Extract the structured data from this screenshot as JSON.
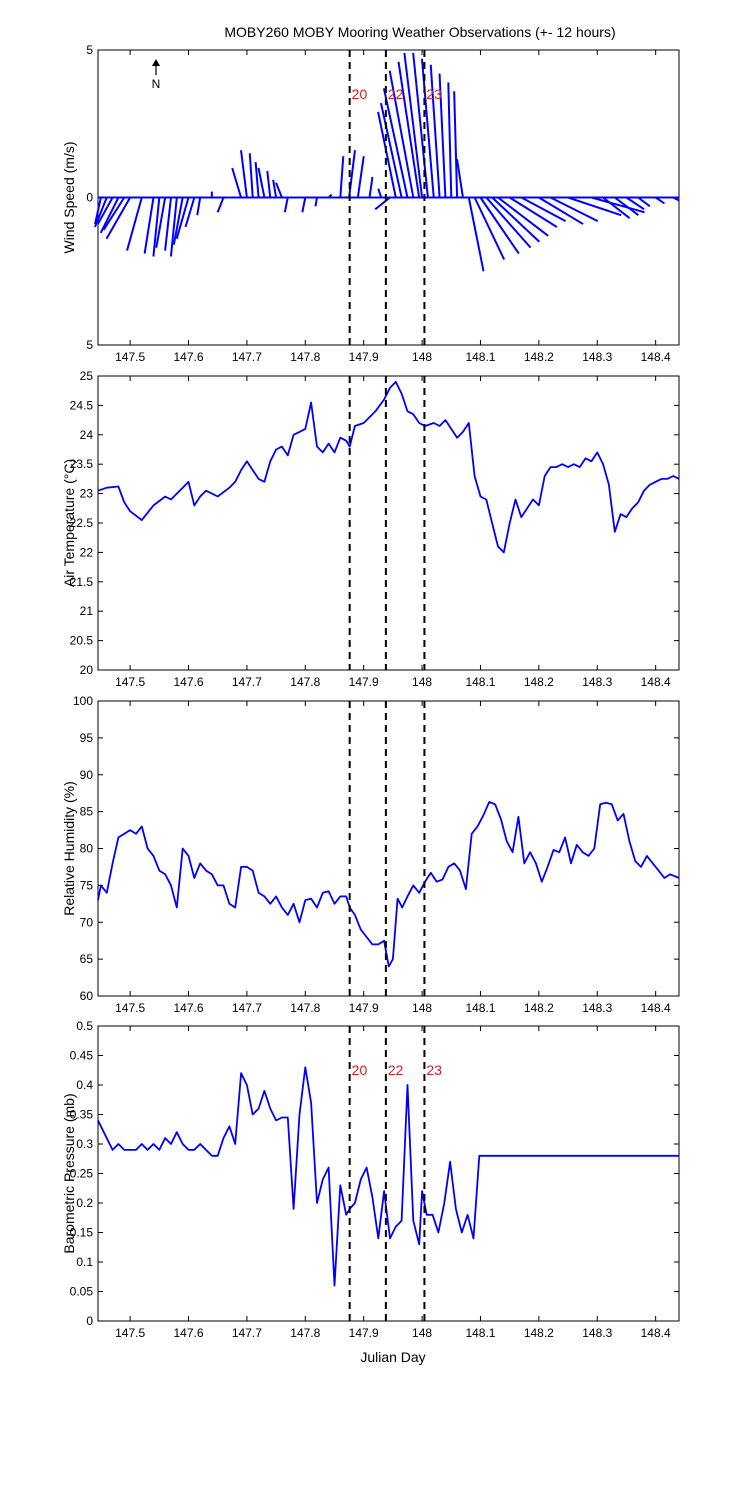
{
  "figure": {
    "title": "MOBY260 MOBY Mooring Weather Observations (+- 12 hours)",
    "xlabel": "Julian Day",
    "north_label": "N",
    "xlim": [
      147.445,
      148.44
    ],
    "xticks": [
      147.5,
      147.6,
      147.7,
      147.8,
      147.9,
      148,
      148.1,
      148.2,
      148.3,
      148.4
    ],
    "xtick_labels": [
      "147.5",
      "147.6",
      "147.7",
      "147.8",
      "147.9",
      "148",
      "148.1",
      "148.2",
      "148.3",
      "148.4"
    ],
    "event_lines": [
      147.876,
      147.938,
      148.004
    ],
    "event_labels": [
      "20",
      "22",
      "23"
    ],
    "colors": {
      "series": "#0000ff",
      "event_label": "#cc2222",
      "axis": "#000000"
    }
  },
  "chart_data": [
    {
      "type": "line",
      "subtype": "wind-vectors",
      "ylabel": "Wind Speed (m/s)",
      "ylim": [
        -5,
        5
      ],
      "yticks": [
        -5,
        0,
        5
      ],
      "ytick_labels": [
        "5",
        "0",
        "5"
      ],
      "series": [
        {
          "x": [
            147.45,
            147.46,
            147.47,
            147.48,
            147.49,
            147.5,
            147.52,
            147.54,
            147.55,
            147.56,
            147.57,
            147.58,
            147.59,
            147.6,
            147.61,
            147.62,
            147.64,
            147.66,
            147.69,
            147.7,
            147.71,
            147.72,
            147.73,
            147.74,
            147.75,
            147.76,
            147.77,
            147.8,
            147.82,
            147.84,
            147.86,
            147.875,
            147.89,
            147.91,
            147.93,
            147.945,
            147.955,
            147.965,
            147.975,
            147.985,
            147.995,
            148.0,
            148.01,
            148.02,
            148.03,
            148.04,
            148.05,
            148.06,
            148.07,
            148.08,
            148.09,
            148.1,
            148.11,
            148.12,
            148.13,
            148.15,
            148.17,
            148.2,
            148.22,
            148.25,
            148.29,
            148.31,
            148.33,
            148.35,
            148.37,
            148.4,
            148.43
          ],
          "u": [
            -0.2,
            -0.4,
            -0.5,
            -0.6,
            -0.7,
            -0.8,
            -0.5,
            -0.3,
            -0.2,
            -0.3,
            -0.2,
            -0.2,
            -0.3,
            -0.4,
            -0.3,
            -0.1,
            0.0,
            -0.2,
            -0.3,
            -0.2,
            -0.1,
            -0.1,
            -0.2,
            -0.1,
            -0.1,
            -0.2,
            -0.1,
            -0.1,
            -0.05,
            0.1,
            0.1,
            0.2,
            0.2,
            0.1,
            -0.1,
            -0.5,
            -0.6,
            -0.7,
            -0.8,
            -0.8,
            -0.7,
            -0.6,
            -0.5,
            -0.4,
            -0.3,
            -0.2,
            -0.1,
            -0.1,
            -0.2,
            0.5,
            1.0,
            1.3,
            1.5,
            1.6,
            1.7,
            1.6,
            1.5,
            1.5,
            1.6,
            1.8,
            1.8,
            0.9,
            0.8,
            0.6,
            0.4,
            0.3,
            0.2
          ],
          "v": [
            -0.9,
            -1.0,
            -0.9,
            -1.2,
            -1.1,
            -1.4,
            -1.8,
            -1.9,
            -2.0,
            -1.7,
            -1.8,
            -2.0,
            -1.6,
            -1.4,
            -1.0,
            -0.6,
            0.2,
            -0.5,
            1.0,
            1.6,
            1.5,
            1.2,
            1.0,
            0.9,
            0.6,
            0.5,
            -0.5,
            -0.5,
            -0.3,
            0.1,
            1.4,
            1.6,
            1.4,
            0.7,
            0.3,
            -0.4,
            2.9,
            3.2,
            3.7,
            4.3,
            4.6,
            4.9,
            4.9,
            4.7,
            4.5,
            4.2,
            3.9,
            3.6,
            1.3,
            -2.5,
            -2.1,
            -1.9,
            -1.7,
            -1.5,
            -1.3,
            -1.0,
            -0.8,
            -0.9,
            -0.8,
            -0.6,
            -0.5,
            -0.7,
            -0.6,
            -0.4,
            -0.3,
            -0.2,
            -0.1
          ]
        }
      ]
    },
    {
      "type": "line",
      "ylabel": "Air Temperature (°C)",
      "ylim": [
        20,
        25
      ],
      "yticks": [
        20,
        20.5,
        21,
        21.5,
        22,
        22.5,
        23,
        23.5,
        24,
        24.5,
        25
      ],
      "ytick_labels": [
        "20",
        "20.5",
        "21",
        "21.5",
        "22",
        "22.5",
        "23",
        "23.5",
        "24",
        "24.5",
        "25"
      ],
      "series": [
        {
          "x": [
            147.445,
            147.46,
            147.48,
            147.49,
            147.5,
            147.52,
            147.54,
            147.56,
            147.57,
            147.58,
            147.59,
            147.6,
            147.61,
            147.62,
            147.63,
            147.64,
            147.65,
            147.67,
            147.68,
            147.69,
            147.7,
            147.71,
            147.72,
            147.73,
            147.74,
            147.75,
            147.76,
            147.77,
            147.78,
            147.79,
            147.8,
            147.81,
            147.82,
            147.83,
            147.84,
            147.85,
            147.86,
            147.87,
            147.876,
            147.885,
            147.9,
            147.91,
            147.92,
            147.935,
            147.945,
            147.955,
            147.965,
            147.975,
            147.985,
            147.995,
            148.005,
            148.02,
            148.03,
            148.04,
            148.05,
            148.06,
            148.07,
            148.08,
            148.09,
            148.1,
            148.11,
            148.12,
            148.13,
            148.14,
            148.15,
            148.16,
            148.17,
            148.18,
            148.19,
            148.2,
            148.21,
            148.22,
            148.23,
            148.24,
            148.25,
            148.26,
            148.27,
            148.28,
            148.29,
            148.3,
            148.31,
            148.32,
            148.33,
            148.34,
            148.35,
            148.36,
            148.37,
            148.38,
            148.39,
            148.4,
            148.41,
            148.42,
            148.43,
            148.44
          ],
          "y": [
            23.05,
            23.1,
            23.12,
            22.85,
            22.7,
            22.55,
            22.8,
            22.95,
            22.9,
            23.0,
            23.1,
            23.2,
            22.8,
            22.95,
            23.05,
            23.0,
            22.95,
            23.1,
            23.2,
            23.4,
            23.55,
            23.4,
            23.25,
            23.2,
            23.55,
            23.75,
            23.8,
            23.65,
            24.0,
            24.05,
            24.1,
            24.55,
            23.8,
            23.7,
            23.85,
            23.7,
            23.95,
            23.9,
            23.8,
            24.15,
            24.2,
            24.3,
            24.4,
            24.6,
            24.8,
            24.9,
            24.7,
            24.4,
            24.35,
            24.2,
            24.15,
            24.2,
            24.15,
            24.25,
            24.1,
            23.95,
            24.05,
            24.2,
            23.3,
            22.95,
            22.9,
            22.5,
            22.1,
            22.0,
            22.5,
            22.9,
            22.6,
            22.75,
            22.9,
            22.8,
            23.3,
            23.45,
            23.45,
            23.5,
            23.45,
            23.5,
            23.45,
            23.6,
            23.55,
            23.7,
            23.5,
            23.15,
            22.35,
            22.65,
            22.6,
            22.75,
            22.85,
            23.05,
            23.15,
            23.2,
            23.25,
            23.25,
            23.3,
            23.25
          ]
        }
      ]
    },
    {
      "type": "line",
      "ylabel": "Relative Humidity (%)",
      "ylim": [
        60,
        100
      ],
      "yticks": [
        60,
        65,
        70,
        75,
        80,
        85,
        90,
        95,
        100
      ],
      "ytick_labels": [
        "60",
        "65",
        "70",
        "75",
        "80",
        "85",
        "90",
        "95",
        "100"
      ],
      "series": [
        {
          "x": [
            147.445,
            147.45,
            147.46,
            147.47,
            147.48,
            147.49,
            147.5,
            147.51,
            147.52,
            147.53,
            147.54,
            147.55,
            147.56,
            147.57,
            147.58,
            147.59,
            147.6,
            147.61,
            147.62,
            147.63,
            147.64,
            147.65,
            147.66,
            147.67,
            147.68,
            147.69,
            147.7,
            147.71,
            147.72,
            147.73,
            147.74,
            147.75,
            147.76,
            147.77,
            147.78,
            147.79,
            147.8,
            147.81,
            147.82,
            147.83,
            147.84,
            147.85,
            147.86,
            147.87,
            147.876,
            147.885,
            147.895,
            147.905,
            147.915,
            147.925,
            147.935,
            147.943,
            147.95,
            147.958,
            147.966,
            147.975,
            147.985,
            147.995,
            148.005,
            148.015,
            148.025,
            148.035,
            148.045,
            148.055,
            148.065,
            148.075,
            148.085,
            148.095,
            148.105,
            148.115,
            148.125,
            148.135,
            148.145,
            148.155,
            148.165,
            148.175,
            148.185,
            148.195,
            148.205,
            148.215,
            148.225,
            148.235,
            148.245,
            148.255,
            148.265,
            148.275,
            148.285,
            148.295,
            148.305,
            148.315,
            148.325,
            148.335,
            148.345,
            148.355,
            148.365,
            148.375,
            148.385,
            148.395,
            148.405,
            148.415,
            148.425,
            148.44
          ],
          "y": [
            73,
            75,
            74,
            78,
            81.5,
            82,
            82.5,
            82,
            83,
            80,
            79,
            77,
            76.5,
            75,
            72,
            80,
            79,
            76,
            78,
            77,
            76.5,
            75,
            75,
            72.5,
            72,
            77.5,
            77.5,
            77,
            74,
            73.5,
            72.5,
            73.5,
            72,
            71,
            72.5,
            70,
            73,
            73.2,
            72,
            74,
            74.2,
            72.5,
            73.5,
            73.5,
            72,
            71,
            69,
            68,
            67,
            67,
            67.5,
            64,
            65,
            73.2,
            72,
            73.5,
            75,
            74,
            75.5,
            76.7,
            75.5,
            75.8,
            77.5,
            78,
            77,
            74.5,
            82,
            83,
            84.5,
            86.3,
            86,
            84,
            81,
            79.5,
            84.3,
            78,
            79.5,
            78,
            75.5,
            77.5,
            79.8,
            79.5,
            81.5,
            78,
            80.5,
            79.5,
            79,
            80,
            86,
            86.2,
            86,
            83.8,
            84.7,
            81,
            78.3,
            77.5,
            79,
            78,
            77,
            76,
            76.5,
            76
          ]
        }
      ]
    },
    {
      "type": "line",
      "ylabel": "Barometric Pressure (mb)",
      "ylim": [
        0,
        0.5
      ],
      "yticks": [
        0,
        0.05,
        0.1,
        0.15,
        0.2,
        0.25,
        0.3,
        0.35,
        0.4,
        0.45,
        0.5
      ],
      "ytick_labels": [
        "0",
        "0.05",
        "0.1",
        "0.15",
        "0.2",
        "0.25",
        "0.3",
        "0.35",
        "0.4",
        "0.45",
        "0.5"
      ],
      "series": [
        {
          "x": [
            147.445,
            147.455,
            147.47,
            147.48,
            147.49,
            147.5,
            147.51,
            147.52,
            147.53,
            147.54,
            147.55,
            147.56,
            147.57,
            147.58,
            147.59,
            147.6,
            147.61,
            147.62,
            147.63,
            147.64,
            147.65,
            147.66,
            147.67,
            147.68,
            147.69,
            147.7,
            147.71,
            147.72,
            147.73,
            147.74,
            147.75,
            147.76,
            147.77,
            147.78,
            147.79,
            147.8,
            147.81,
            147.82,
            147.83,
            147.84,
            147.85,
            147.86,
            147.87,
            147.876,
            147.885,
            147.895,
            147.905,
            147.915,
            147.925,
            147.935,
            147.945,
            147.955,
            147.965,
            147.975,
            147.985,
            147.995,
            148.0,
            148.008,
            148.018,
            148.028,
            148.038,
            148.048,
            148.058,
            148.068,
            148.078,
            148.088,
            148.098,
            148.108,
            148.118,
            148.128,
            148.138,
            148.145,
            148.44
          ],
          "y": [
            0.34,
            0.32,
            0.29,
            0.3,
            0.29,
            0.29,
            0.29,
            0.3,
            0.29,
            0.3,
            0.29,
            0.31,
            0.3,
            0.32,
            0.3,
            0.29,
            0.29,
            0.3,
            0.29,
            0.28,
            0.28,
            0.31,
            0.33,
            0.3,
            0.42,
            0.4,
            0.35,
            0.36,
            0.39,
            0.36,
            0.34,
            0.345,
            0.345,
            0.19,
            0.35,
            0.43,
            0.37,
            0.2,
            0.24,
            0.26,
            0.06,
            0.23,
            0.18,
            0.19,
            0.2,
            0.24,
            0.26,
            0.21,
            0.14,
            0.22,
            0.14,
            0.16,
            0.17,
            0.4,
            0.17,
            0.13,
            0.22,
            0.18,
            0.18,
            0.15,
            0.2,
            0.27,
            0.19,
            0.15,
            0.18,
            0.14,
            0.28,
            0.28,
            0.28,
            0.28,
            0.28,
            0.28,
            0.28
          ]
        }
      ]
    }
  ]
}
